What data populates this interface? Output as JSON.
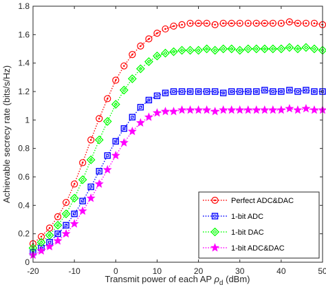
{
  "chart_data": {
    "type": "line",
    "xlabel": "Transmit power of each AP",
    "xlabel_symbol": "ρ",
    "xlabel_subscript": "d",
    "xlabel_unit": "(dBm)",
    "ylabel": "Achievable secrecy rate (bits/s/Hz)",
    "xlim": [
      -20,
      50
    ],
    "ylim": [
      0,
      1.8
    ],
    "xticks": [
      -20,
      -10,
      0,
      10,
      20,
      30,
      40,
      50
    ],
    "yticks": [
      0,
      0.2,
      0.4,
      0.6,
      0.8,
      1,
      1.2,
      1.4,
      1.6,
      1.8
    ],
    "xtick_labels": [
      "-20",
      "-10",
      "0",
      "10",
      "20",
      "30",
      "40",
      "50"
    ],
    "ytick_labels": [
      "0",
      "0.2",
      "0.4",
      "0.6",
      "0.8",
      "1",
      "1.2",
      "1.4",
      "1.6",
      "1.8"
    ],
    "grid": false,
    "legend_position": "bottom-right",
    "x": [
      -20,
      -18,
      -16,
      -14,
      -12,
      -10,
      -8,
      -6,
      -4,
      -2,
      0,
      2,
      4,
      6,
      8,
      10,
      12,
      14,
      16,
      18,
      20,
      22,
      24,
      26,
      28,
      30,
      32,
      34,
      36,
      38,
      40,
      42,
      44,
      46,
      48,
      50
    ],
    "series": [
      {
        "name": "Perfect ADC&DAC",
        "color": "#ff0000",
        "marker": "circle",
        "values": [
          0.13,
          0.18,
          0.24,
          0.32,
          0.42,
          0.55,
          0.7,
          0.86,
          1.01,
          1.15,
          1.28,
          1.38,
          1.46,
          1.52,
          1.57,
          1.61,
          1.64,
          1.66,
          1.67,
          1.68,
          1.68,
          1.68,
          1.67,
          1.68,
          1.68,
          1.68,
          1.68,
          1.68,
          1.68,
          1.68,
          1.68,
          1.69,
          1.68,
          1.68,
          1.68,
          1.67
        ]
      },
      {
        "name": "1-bit ADC",
        "color": "#0000ff",
        "marker": "square",
        "values": [
          0.07,
          0.1,
          0.14,
          0.2,
          0.26,
          0.34,
          0.43,
          0.53,
          0.64,
          0.75,
          0.85,
          0.94,
          1.02,
          1.09,
          1.14,
          1.17,
          1.19,
          1.2,
          1.2,
          1.2,
          1.2,
          1.2,
          1.2,
          1.19,
          1.2,
          1.2,
          1.2,
          1.2,
          1.21,
          1.2,
          1.2,
          1.21,
          1.2,
          1.21,
          1.2,
          1.2
        ]
      },
      {
        "name": "1-bit DAC",
        "color": "#00ff00",
        "marker": "diamond",
        "values": [
          0.1,
          0.14,
          0.19,
          0.26,
          0.34,
          0.45,
          0.58,
          0.72,
          0.86,
          0.99,
          1.11,
          1.21,
          1.29,
          1.36,
          1.41,
          1.45,
          1.47,
          1.48,
          1.49,
          1.49,
          1.49,
          1.5,
          1.49,
          1.5,
          1.5,
          1.49,
          1.5,
          1.5,
          1.5,
          1.5,
          1.5,
          1.51,
          1.5,
          1.51,
          1.5,
          1.49
        ]
      },
      {
        "name": "1-bit ADC&DAC",
        "color": "#ff00ff",
        "marker": "star",
        "values": [
          0.05,
          0.08,
          0.11,
          0.15,
          0.2,
          0.27,
          0.36,
          0.45,
          0.55,
          0.65,
          0.75,
          0.84,
          0.92,
          0.98,
          1.02,
          1.05,
          1.06,
          1.06,
          1.07,
          1.07,
          1.07,
          1.07,
          1.06,
          1.07,
          1.07,
          1.07,
          1.07,
          1.07,
          1.07,
          1.07,
          1.07,
          1.08,
          1.07,
          1.08,
          1.07,
          1.07
        ]
      }
    ]
  }
}
